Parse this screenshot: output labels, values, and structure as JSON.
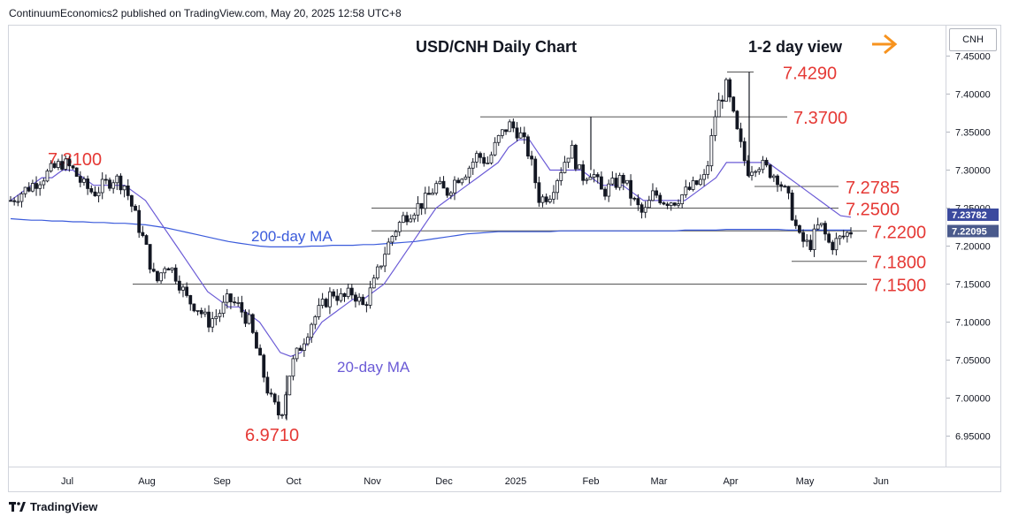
{
  "publisher_line": "ContinuumEconomics2 published on TradingView.com, May 20, 2025 12:58 UTC+8",
  "symbol": "CNH",
  "footer_logo": "TradingView",
  "colors": {
    "bull": "#131722",
    "bear": "#131722",
    "level_line": "#e53935",
    "level_label": "#e53935",
    "ma20": "#6b5bd6",
    "ma200": "#3b5bdb",
    "arrow": "#f7931e",
    "price_tag_ma": "#3b4a9e",
    "price_tag_last": "#4a5a8c"
  },
  "chart_data": {
    "type": "candlestick",
    "title": "USD/CNH Daily Chart",
    "subtitle": "1-2 day view",
    "x_ticks": [
      "Jul",
      "Aug",
      "Sep",
      "Oct",
      "Nov",
      "Dec",
      "2025",
      "Feb",
      "Mar",
      "Apr",
      "May",
      "Jun"
    ],
    "y_ticks": [
      "7.45000",
      "7.40000",
      "7.35000",
      "7.30000",
      "7.25000",
      "7.20000",
      "7.15000",
      "7.10000",
      "7.05000",
      "7.00000",
      "6.95000"
    ],
    "ylim": [
      6.91,
      7.49
    ],
    "levels": [
      {
        "label": "7.4290",
        "value": 7.429
      },
      {
        "label": "7.3700",
        "value": 7.37
      },
      {
        "label": "7.2785",
        "value": 7.2785
      },
      {
        "label": "7.2500",
        "value": 7.25
      },
      {
        "label": "7.2200",
        "value": 7.22
      },
      {
        "label": "7.1800",
        "value": 7.18
      },
      {
        "label": "7.1500",
        "value": 7.15
      }
    ],
    "annotations": [
      {
        "label": "7.3100",
        "value": 7.31
      },
      {
        "label": "6.9710",
        "value": 6.971
      }
    ],
    "ma_labels": {
      "ma200": "200-day MA",
      "ma20": "20-day MA"
    },
    "price_tags": [
      {
        "label": "7.23782",
        "value": 7.23782,
        "kind": "ma"
      },
      {
        "label": "7.22095",
        "value": 7.22095,
        "kind": "last"
      }
    ],
    "close_path": [
      7.26,
      7.27,
      7.28,
      7.29,
      7.3,
      7.31,
      7.3,
      7.28,
      7.27,
      7.28,
      7.29,
      7.28,
      7.24,
      7.2,
      7.15,
      7.18,
      7.16,
      7.13,
      7.12,
      7.1,
      7.11,
      7.13,
      7.12,
      7.1,
      7.05,
      7.0,
      6.975,
      7.04,
      7.07,
      7.1,
      7.12,
      7.14,
      7.13,
      7.14,
      7.12,
      7.15,
      7.19,
      7.22,
      7.24,
      7.25,
      7.26,
      7.28,
      7.27,
      7.29,
      7.3,
      7.32,
      7.31,
      7.34,
      7.36,
      7.35,
      7.32,
      7.26,
      7.27,
      7.3,
      7.33,
      7.29,
      7.3,
      7.27,
      7.28,
      7.29,
      7.26,
      7.24,
      7.27,
      7.26,
      7.26,
      7.27,
      7.28,
      7.29,
      7.38,
      7.41,
      7.35,
      7.3,
      7.31,
      7.3,
      7.29,
      7.26,
      7.21,
      7.2,
      7.23,
      7.2,
      7.21,
      7.22
    ],
    "ma20_path": [
      7.26,
      7.27,
      7.28,
      7.29,
      7.29,
      7.3,
      7.3,
      7.29,
      7.28,
      7.28,
      7.28,
      7.28,
      7.27,
      7.26,
      7.24,
      7.22,
      7.2,
      7.18,
      7.16,
      7.14,
      7.13,
      7.12,
      7.12,
      7.11,
      7.1,
      7.08,
      7.06,
      7.055,
      7.06,
      7.08,
      7.1,
      7.11,
      7.12,
      7.13,
      7.13,
      7.14,
      7.15,
      7.17,
      7.19,
      7.21,
      7.23,
      7.25,
      7.26,
      7.27,
      7.28,
      7.29,
      7.3,
      7.31,
      7.33,
      7.34,
      7.34,
      7.32,
      7.3,
      7.3,
      7.3,
      7.3,
      7.29,
      7.28,
      7.28,
      7.28,
      7.27,
      7.26,
      7.26,
      7.26,
      7.26,
      7.26,
      7.27,
      7.28,
      7.29,
      7.31,
      7.31,
      7.31,
      7.31,
      7.31,
      7.3,
      7.29,
      7.28,
      7.27,
      7.26,
      7.25,
      7.24,
      7.238
    ],
    "ma200_path": [
      7.236,
      7.235,
      7.234,
      7.234,
      7.233,
      7.233,
      7.232,
      7.232,
      7.231,
      7.231,
      7.23,
      7.23,
      7.229,
      7.228,
      7.226,
      7.224,
      7.221,
      7.218,
      7.215,
      7.212,
      7.209,
      7.206,
      7.204,
      7.202,
      7.2,
      7.199,
      7.199,
      7.199,
      7.199,
      7.2,
      7.2,
      7.201,
      7.201,
      7.201,
      7.202,
      7.202,
      7.203,
      7.204,
      7.205,
      7.206,
      7.208,
      7.21,
      7.212,
      7.214,
      7.216,
      7.217,
      7.218,
      7.219,
      7.219,
      7.219,
      7.219,
      7.219,
      7.219,
      7.22,
      7.22,
      7.22,
      7.22,
      7.22,
      7.22,
      7.22,
      7.22,
      7.22,
      7.22,
      7.22,
      7.22,
      7.221,
      7.221,
      7.221,
      7.221,
      7.222,
      7.222,
      7.222,
      7.222,
      7.222,
      7.222,
      7.221,
      7.221,
      7.221,
      7.221,
      7.221,
      7.221,
      7.221
    ]
  }
}
